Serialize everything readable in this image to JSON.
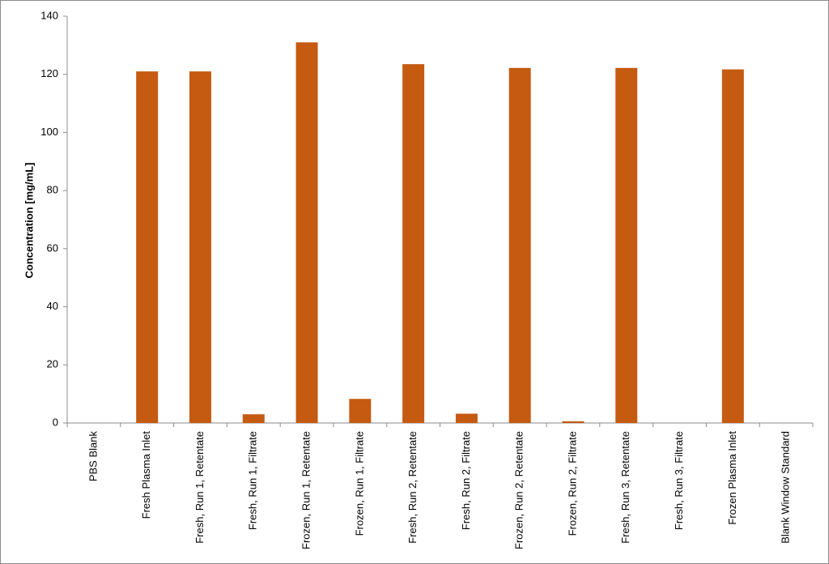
{
  "chart_data": {
    "type": "bar",
    "title": "",
    "xlabel": "",
    "ylabel": "Concentration [mg/mL]",
    "ylim": [
      0,
      140
    ],
    "yticks": [
      0,
      20,
      40,
      60,
      80,
      100,
      120,
      140
    ],
    "grid": false,
    "legend": "none",
    "bar_color": "#c55a11",
    "categories": [
      "PBS Blank",
      "Fresh Plasma Inlet",
      "Fresh, Run 1, Retentate",
      "Fresh, Run 1, Filtrate",
      "Frozen, Run 1, Retentate",
      "Frozen, Run 1, Filtrate",
      "Fresh, Run 2, Retentate",
      "Fresh, Run 2, Filtrate",
      "Frozen, Run 2, Retentate",
      "Frozen, Run 2, Filtrate",
      "Fresh, Run 3, Retentate",
      "Fresh, Run 3, Filtrate",
      "Frozen Plasma Inlet",
      "Blank Window Standard"
    ],
    "values": [
      0,
      121,
      121,
      3,
      131,
      8.3,
      123.5,
      3.2,
      122.2,
      0.6,
      122.2,
      0,
      121.7,
      0
    ]
  }
}
